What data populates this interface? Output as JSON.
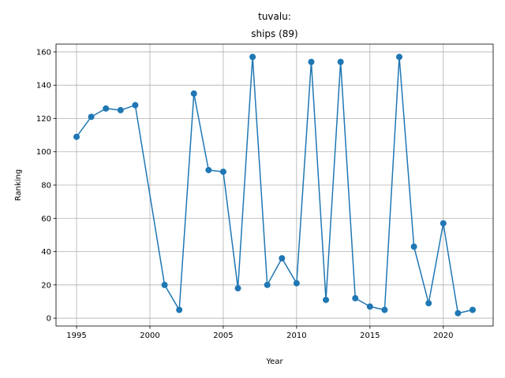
{
  "chart_data": {
    "type": "line",
    "title_line1": "tuvalu:",
    "title_line2": "ships (89)",
    "xlabel": "Year",
    "ylabel": "Ranking",
    "xlim": [
      1993.6,
      2023.4
    ],
    "ylim": [
      -4.7,
      164.7
    ],
    "grid": true,
    "color": "#1f77b4",
    "x_ticks": [
      1995,
      2000,
      2005,
      2010,
      2015,
      2020
    ],
    "y_ticks": [
      0,
      20,
      40,
      60,
      80,
      100,
      120,
      140,
      160
    ],
    "x": [
      1995,
      1996,
      1997,
      1998,
      1999,
      2001,
      2002,
      2003,
      2004,
      2005,
      2006,
      2007,
      2008,
      2009,
      2010,
      2011,
      2012,
      2013,
      2014,
      2015,
      2016,
      2017,
      2018,
      2019,
      2020,
      2021,
      2022
    ],
    "y": [
      109,
      121,
      126,
      125,
      128,
      20,
      5,
      135,
      89,
      88,
      18,
      157,
      20,
      36,
      21,
      154,
      11,
      154,
      12,
      7,
      5,
      157,
      43,
      9,
      57,
      3,
      5
    ]
  }
}
